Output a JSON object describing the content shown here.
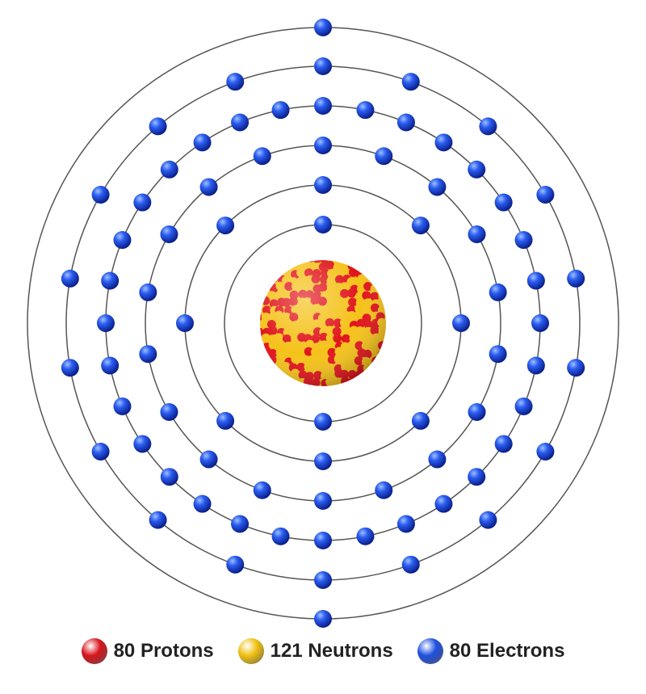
{
  "diagram": {
    "shells": [
      2,
      8,
      18,
      32,
      18,
      2
    ],
    "colors": {
      "electron": "#1f4fe0",
      "proton": "#e0141c",
      "neutron": "#f5c21a",
      "orbit": "#555555"
    }
  },
  "legend": [
    {
      "count": "80",
      "label": "Protons",
      "color": "#d8141c"
    },
    {
      "count": "121",
      "label": "Neutrons",
      "color": "#f0c010"
    },
    {
      "count": "80",
      "label": "Electrons",
      "color": "#1f4fe0"
    }
  ]
}
